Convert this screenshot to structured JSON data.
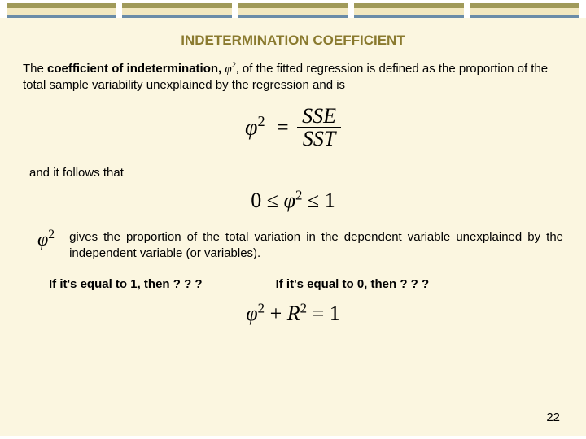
{
  "bars": {
    "count": 5,
    "olive": "#a09a5a",
    "cream": "#f2e8c0",
    "blue": "#6a8ca8"
  },
  "content_bg": "#fbf6e0",
  "title": "INDETERMINATION COEFFICIENT",
  "title_color": "#8a7a2f",
  "intro": {
    "prefix": "The ",
    "bold1": "coefficient of indetermination, ",
    "phi": "φ",
    "sup": "2",
    "after_phi": ", of the fitted regression is defined as the proportion of the total sample variability unexplained by the regression and is"
  },
  "eq_frac": {
    "lhs_sym": "φ",
    "lhs_sup": "2",
    "eq": "=",
    "num": "SSE",
    "den": "SST"
  },
  "follows": "and it follows that",
  "eq_bounds": {
    "zero": "0",
    "le1": "≤",
    "phi": "φ",
    "sup": "2",
    "le2": "≤",
    "one": "1"
  },
  "para2": {
    "phi": "φ",
    "sup": "2",
    "text": "gives the proportion of the total variation in the dependent variable unexplained by the independent variable (or variables)."
  },
  "q1": "If it's equal to 1, then ? ? ?",
  "q2": "If it's equal to 0, then ? ? ?",
  "eq_sum": {
    "phi": "φ",
    "sup": "2",
    "plus": "+",
    "R": "R",
    "sup2": "2",
    "eq": "=",
    "one": "1"
  },
  "pagenum": "22"
}
